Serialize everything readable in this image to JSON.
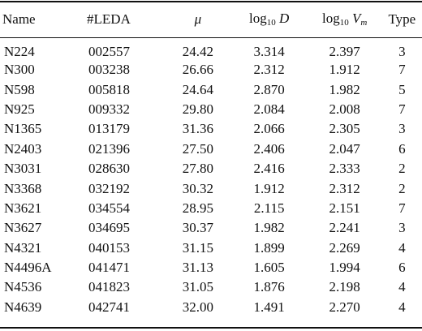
{
  "table": {
    "headers": {
      "name": "Name",
      "leda": "#LEDA",
      "mu": "μ",
      "logd_func": "log",
      "logd_sub": "10",
      "logd_var": "D",
      "logv_func": "log",
      "logv_sub": "10",
      "logv_var": "V",
      "logv_var_sub": "m",
      "type": "Type"
    },
    "rows": [
      {
        "name": "N224",
        "leda": "002557",
        "mu": "24.42",
        "logd": "3.314",
        "logv": "2.397",
        "type": "3"
      },
      {
        "name": "N300",
        "leda": "003238",
        "mu": "26.66",
        "logd": "2.312",
        "logv": "1.912",
        "type": "7"
      },
      {
        "name": "N598",
        "leda": "005818",
        "mu": "24.64",
        "logd": "2.870",
        "logv": "1.982",
        "type": "5"
      },
      {
        "name": "N925",
        "leda": "009332",
        "mu": "29.80",
        "logd": "2.084",
        "logv": "2.008",
        "type": "7"
      },
      {
        "name": "N1365",
        "leda": "013179",
        "mu": "31.36",
        "logd": "2.066",
        "logv": "2.305",
        "type": "3"
      },
      {
        "name": "N2403",
        "leda": "021396",
        "mu": "27.50",
        "logd": "2.406",
        "logv": "2.047",
        "type": "6"
      },
      {
        "name": "N3031",
        "leda": "028630",
        "mu": "27.80",
        "logd": "2.416",
        "logv": "2.333",
        "type": "2"
      },
      {
        "name": "N3368",
        "leda": "032192",
        "mu": "30.32",
        "logd": "1.912",
        "logv": "2.312",
        "type": "2"
      },
      {
        "name": "N3621",
        "leda": "034554",
        "mu": "28.95",
        "logd": "2.115",
        "logv": "2.151",
        "type": "7"
      },
      {
        "name": "N3627",
        "leda": "034695",
        "mu": "30.37",
        "logd": "1.982",
        "logv": "2.241",
        "type": "3"
      },
      {
        "name": "N4321",
        "leda": "040153",
        "mu": "31.15",
        "logd": "1.899",
        "logv": "2.269",
        "type": "4"
      },
      {
        "name": "N4496A",
        "leda": "041471",
        "mu": "31.13",
        "logd": "1.605",
        "logv": "1.994",
        "type": "6"
      },
      {
        "name": "N4536",
        "leda": "041823",
        "mu": "31.05",
        "logd": "1.876",
        "logv": "2.198",
        "type": "4"
      },
      {
        "name": "N4639",
        "leda": "042741",
        "mu": "32.00",
        "logd": "1.491",
        "logv": "2.270",
        "type": "4"
      }
    ]
  }
}
